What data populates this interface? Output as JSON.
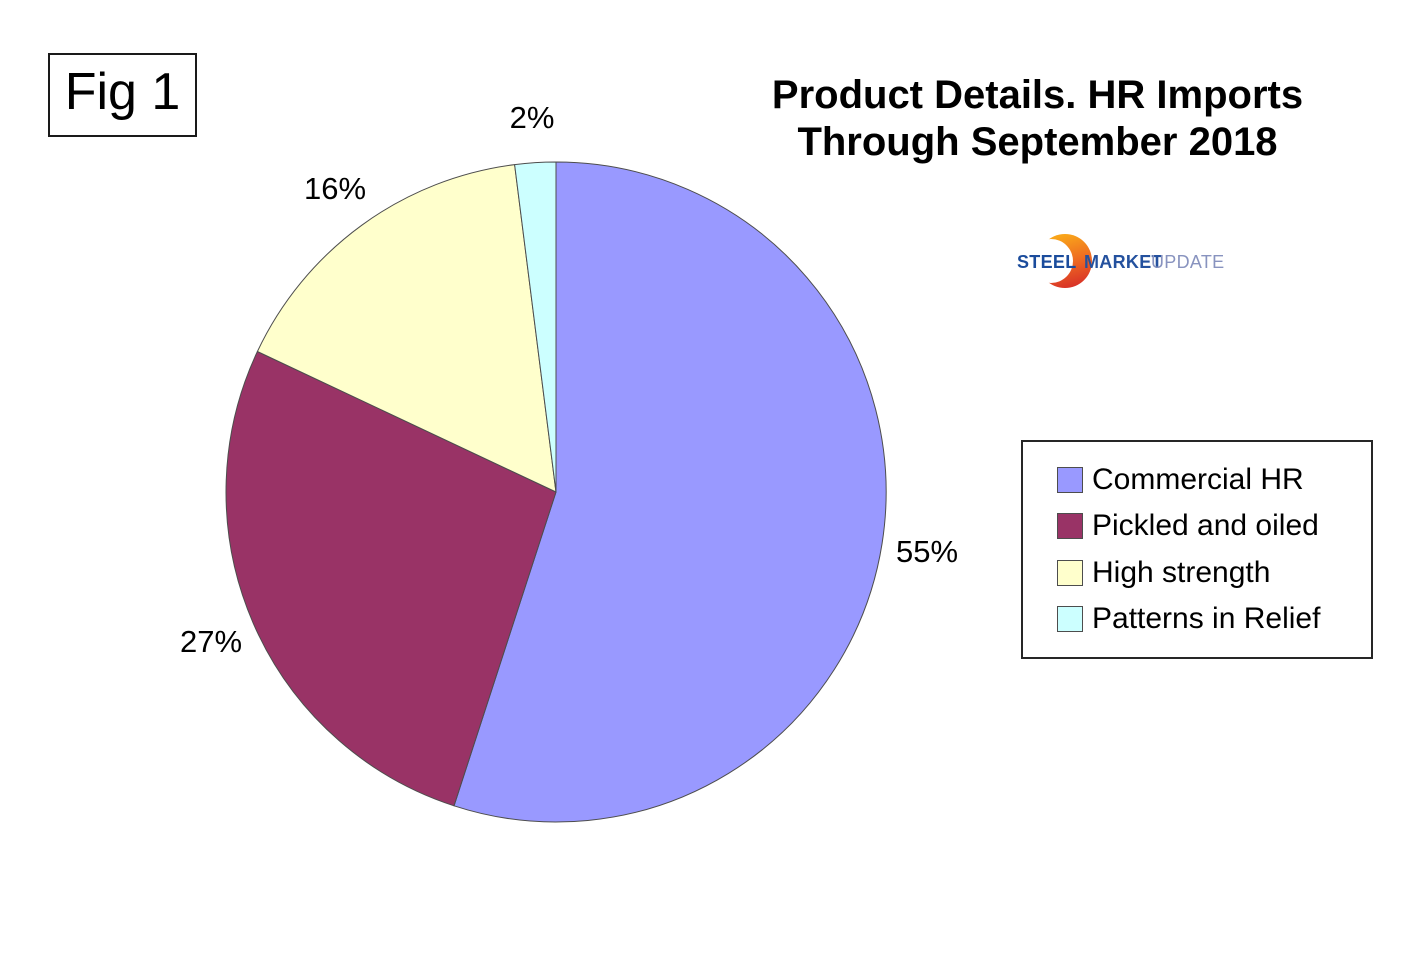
{
  "figure": {
    "label": "Fig 1"
  },
  "header": {
    "title_line1": "Product Details. HR Imports",
    "title_line2": "Through September 2018"
  },
  "logo": {
    "steel": "STEEL",
    "market": "MARKET",
    "update": "UPDATE",
    "steel_color": "#1B4C9C",
    "market_color": "#24519E",
    "update_color": "#8893BF",
    "crescent_color_top": "#F9A51A",
    "crescent_color_mid": "#EE6B22",
    "crescent_color_bottom": "#D93327"
  },
  "chart_data": {
    "type": "pie",
    "title": "Product Details. HR Imports Through September 2018",
    "direction": "clockwise",
    "start_angle_deg": 0,
    "legend_position": "right",
    "data_labels": "percent-outside",
    "slices": [
      {
        "label": "Commercial HR",
        "value": 55,
        "percent_label": "55%",
        "color": "#9999FF"
      },
      {
        "label": "Pickled and oiled",
        "value": 27,
        "percent_label": "27%",
        "color": "#993366"
      },
      {
        "label": "High strength",
        "value": 16,
        "percent_label": "16%",
        "color": "#FFFFCC"
      },
      {
        "label": "Patterns in Relief",
        "value": 2,
        "percent_label": "2%",
        "color": "#CCFFFF"
      }
    ]
  }
}
